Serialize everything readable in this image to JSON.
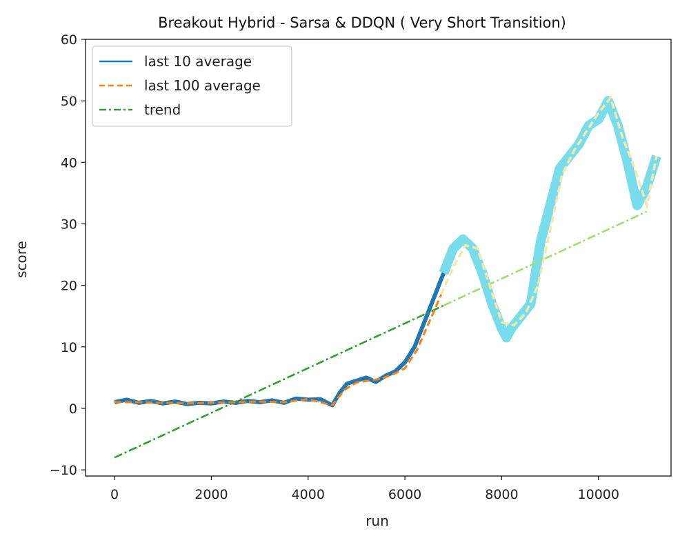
{
  "chart_data": {
    "type": "line",
    "title": "Breakout Hybrid - Sarsa & DDQN ( Very Short Transition)",
    "xlabel": "run",
    "ylabel": "score",
    "xlim": [
      -600,
      11500
    ],
    "ylim": [
      -11,
      60
    ],
    "xticks": [
      0,
      2000,
      4000,
      6000,
      8000,
      10000
    ],
    "yticks": [
      -10,
      0,
      10,
      20,
      30,
      40,
      50,
      60
    ],
    "legend_position": "top-left",
    "colors": {
      "last10": "#1f77b4",
      "last10_highlight": "#5fd7ea",
      "last100": "#ff7f0e",
      "last100_highlight": "#f6e7a8",
      "trend": "#2ca02c",
      "trend_highlight": "#9be06a"
    },
    "series": [
      {
        "name": "last 10 average",
        "style": "solid",
        "x": [
          0,
          250,
          500,
          750,
          1000,
          1250,
          1500,
          1750,
          2000,
          2250,
          2500,
          2750,
          3000,
          3250,
          3500,
          3750,
          4000,
          4250,
          4500,
          4650,
          4800,
          5000,
          5200,
          5400,
          5600,
          5800,
          6000,
          6200,
          6400,
          6600,
          6800,
          7000,
          7200,
          7400,
          7600,
          7800,
          8000,
          8100,
          8200,
          8400,
          8600,
          8800,
          9000,
          9200,
          9400,
          9600,
          9800,
          10000,
          10200,
          10400,
          10600,
          10800,
          11000,
          11200
        ],
        "y": [
          1.0,
          1.4,
          0.9,
          1.2,
          0.8,
          1.1,
          0.7,
          0.9,
          0.8,
          1.1,
          0.9,
          1.2,
          1.0,
          1.3,
          0.9,
          1.6,
          1.4,
          1.5,
          0.5,
          2.5,
          4.0,
          4.5,
          5.0,
          4.3,
          5.3,
          6.0,
          7.5,
          10.0,
          14.0,
          18.0,
          22.0,
          26.0,
          27.5,
          26.0,
          22.0,
          17.0,
          13.0,
          11.5,
          13.0,
          15.0,
          17.0,
          27.0,
          33.0,
          39.0,
          41.0,
          43.0,
          46.0,
          47.0,
          50.0,
          46.0,
          40.0,
          33.0,
          36.0,
          41.0
        ]
      },
      {
        "name": "last 100 average",
        "style": "dashed",
        "x": [
          0,
          500,
          1000,
          1500,
          2000,
          2500,
          3000,
          3500,
          4000,
          4250,
          4500,
          4750,
          5000,
          5250,
          5500,
          5750,
          6000,
          6250,
          6500,
          6750,
          7000,
          7250,
          7500,
          7750,
          8000,
          8250,
          8500,
          8750,
          9000,
          9250,
          9500,
          9750,
          10000,
          10250,
          10500,
          10750,
          11000,
          11200
        ],
        "y": [
          1.0,
          1.0,
          0.9,
          0.8,
          0.9,
          1.0,
          1.1,
          1.0,
          1.5,
          1.0,
          0.5,
          3.0,
          4.2,
          4.5,
          4.8,
          5.5,
          6.5,
          9.5,
          14.0,
          18.5,
          23.0,
          26.5,
          26.0,
          20.0,
          14.0,
          13.5,
          15.5,
          20.0,
          29.0,
          38.0,
          42.0,
          45.0,
          48.0,
          50.5,
          44.0,
          39.0,
          33.0,
          41.0
        ]
      },
      {
        "name": "trend",
        "style": "dashdot",
        "x": [
          0,
          11000
        ],
        "y": [
          -8.0,
          32.0
        ]
      }
    ]
  }
}
